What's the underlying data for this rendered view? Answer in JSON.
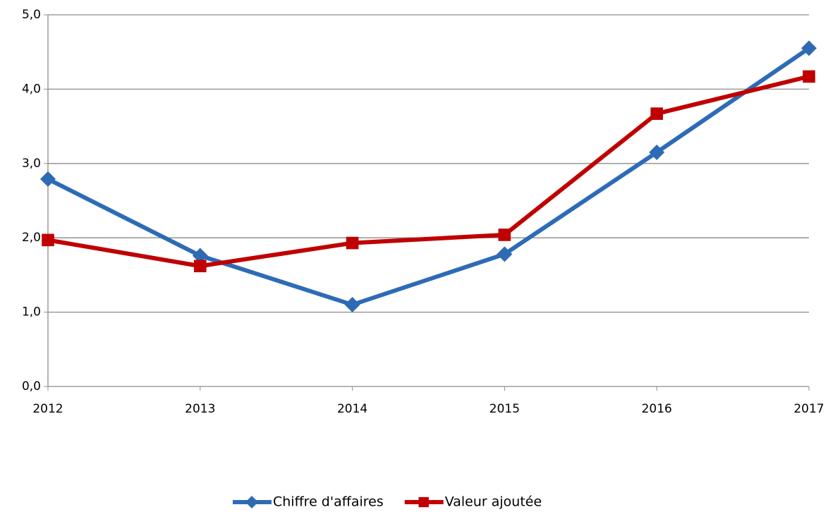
{
  "chart_data": {
    "type": "line",
    "categories": [
      "2012",
      "2013",
      "2014",
      "2015",
      "2016",
      "2017"
    ],
    "series": [
      {
        "name": "Chiffre d'affaires",
        "color": "#2e6bb5",
        "marker": "diamond",
        "values": [
          2.79,
          1.76,
          1.1,
          1.78,
          3.15,
          4.55
        ]
      },
      {
        "name": "Valeur ajoutée",
        "color": "#c00000",
        "marker": "square",
        "values": [
          1.97,
          1.62,
          1.93,
          2.04,
          3.67,
          4.17
        ]
      }
    ],
    "ylim": [
      0,
      5
    ],
    "yticks": [
      {
        "value": 0,
        "label": "0,0"
      },
      {
        "value": 1,
        "label": "1,0"
      },
      {
        "value": 2,
        "label": "2,0"
      },
      {
        "value": 3,
        "label": "3,0"
      },
      {
        "value": 4,
        "label": "4,0"
      },
      {
        "value": 5,
        "label": "5,0"
      }
    ],
    "grid": true,
    "legend": "bottom"
  }
}
